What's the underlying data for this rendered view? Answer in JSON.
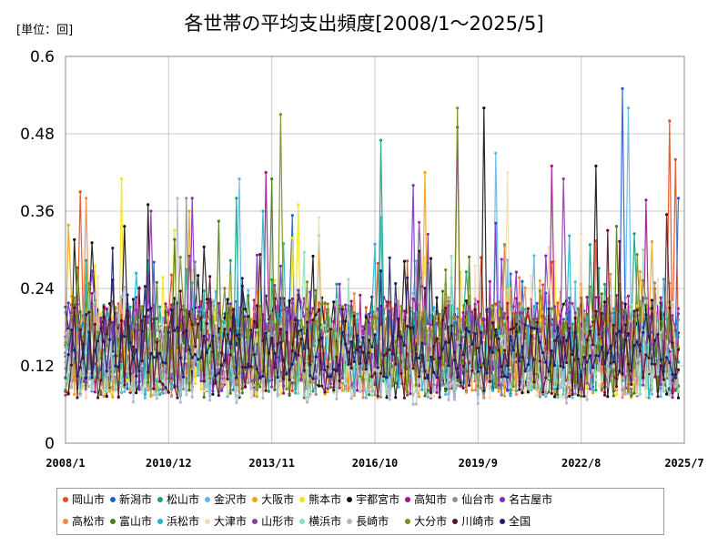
{
  "chart_data": {
    "type": "line",
    "title": "各世帯の平均支出頻度[2008/1～2025/5]",
    "unit_label": "[単位：回]",
    "ylim": [
      0,
      0.6
    ],
    "y_ticks": [
      {
        "value": 0,
        "label": "0"
      },
      {
        "value": 0.12,
        "label": "0.12"
      },
      {
        "value": 0.24,
        "label": "0.24"
      },
      {
        "value": 0.36,
        "label": "0.36"
      },
      {
        "value": 0.48,
        "label": "0.48"
      },
      {
        "value": 0.6,
        "label": "0.6"
      }
    ],
    "x_range": [
      "2008/1",
      "2025/7"
    ],
    "x_ticks": [
      "2008/1",
      "2010/12",
      "2013/11",
      "2016/10",
      "2019/9",
      "2022/8",
      "2025/7"
    ],
    "grid": true,
    "legend_position": "bottom",
    "series": [
      {
        "name": "岡山市",
        "color": "#e8491d",
        "base": 0.15,
        "amp": 0.07,
        "peaks": [
          {
            "x": 2008.45,
            "y": 0.39
          },
          {
            "x": 2025.05,
            "y": 0.5
          },
          {
            "x": 2025.25,
            "y": 0.44
          }
        ]
      },
      {
        "name": "新潟市",
        "color": "#1f5fd6",
        "base": 0.15,
        "amp": 0.07,
        "peaks": [
          {
            "x": 2023.75,
            "y": 0.55
          },
          {
            "x": 2025.3,
            "y": 0.38
          }
        ]
      },
      {
        "name": "松山市",
        "color": "#12a37a",
        "base": 0.15,
        "amp": 0.07,
        "peaks": [
          {
            "x": 2016.95,
            "y": 0.47
          },
          {
            "x": 2012.85,
            "y": 0.38
          }
        ]
      },
      {
        "name": "金沢市",
        "color": "#5bb8e8",
        "base": 0.14,
        "amp": 0.07,
        "peaks": [
          {
            "x": 2023.95,
            "y": 0.52
          },
          {
            "x": 2020.15,
            "y": 0.45
          },
          {
            "x": 2012.9,
            "y": 0.41
          }
        ]
      },
      {
        "name": "大阪市",
        "color": "#f2a20c",
        "base": 0.14,
        "amp": 0.07,
        "peaks": [
          {
            "x": 2018.2,
            "y": 0.42
          },
          {
            "x": 2011.5,
            "y": 0.36
          }
        ]
      },
      {
        "name": "熊本市",
        "color": "#f5e21b",
        "base": 0.14,
        "amp": 0.07,
        "peaks": [
          {
            "x": 2009.6,
            "y": 0.41
          },
          {
            "x": 2014.6,
            "y": 0.37
          }
        ]
      },
      {
        "name": "宇都宮市",
        "color": "#111111",
        "base": 0.15,
        "amp": 0.08,
        "peaks": [
          {
            "x": 2019.85,
            "y": 0.52
          },
          {
            "x": 2023.0,
            "y": 0.43
          },
          {
            "x": 2010.3,
            "y": 0.37
          }
        ]
      },
      {
        "name": "高知市",
        "color": "#a5118f",
        "base": 0.15,
        "amp": 0.08,
        "peaks": [
          {
            "x": 2019.1,
            "y": 0.49
          },
          {
            "x": 2021.75,
            "y": 0.43
          },
          {
            "x": 2013.65,
            "y": 0.42
          }
        ]
      },
      {
        "name": "仙台市",
        "color": "#8a9098",
        "base": 0.13,
        "amp": 0.06,
        "peaks": [
          {
            "x": 2011.45,
            "y": 0.38
          }
        ]
      },
      {
        "name": "名古屋市",
        "color": "#7a2bc4",
        "base": 0.15,
        "amp": 0.07,
        "peaks": [
          {
            "x": 2011.6,
            "y": 0.38
          },
          {
            "x": 2017.8,
            "y": 0.4
          }
        ]
      },
      {
        "name": "高松市",
        "color": "#ee8a45",
        "base": 0.14,
        "amp": 0.07,
        "peaks": [
          {
            "x": 2008.6,
            "y": 0.38
          }
        ]
      },
      {
        "name": "富山市",
        "color": "#4f7a12",
        "base": 0.14,
        "amp": 0.07,
        "peaks": [
          {
            "x": 2013.85,
            "y": 0.41
          }
        ]
      },
      {
        "name": "浜松市",
        "color": "#22b5c9",
        "base": 0.14,
        "amp": 0.07,
        "peaks": [
          {
            "x": 2013.55,
            "y": 0.36
          },
          {
            "x": 2016.9,
            "y": 0.35
          }
        ]
      },
      {
        "name": "大津市",
        "color": "#f2ddb4",
        "base": 0.13,
        "amp": 0.06,
        "peaks": [
          {
            "x": 2015.2,
            "y": 0.35
          },
          {
            "x": 2020.5,
            "y": 0.42
          }
        ]
      },
      {
        "name": "山形市",
        "color": "#8e3a9e",
        "base": 0.15,
        "amp": 0.07,
        "peaks": [
          {
            "x": 2022.1,
            "y": 0.41
          },
          {
            "x": 2010.4,
            "y": 0.36
          }
        ]
      },
      {
        "name": "横浜市",
        "color": "#8ee0b5",
        "base": 0.13,
        "amp": 0.06,
        "peaks": [
          {
            "x": 2024.3,
            "y": 0.3
          }
        ]
      },
      {
        "name": "長崎市",
        "color": "#b4b4d0",
        "base": 0.12,
        "amp": 0.06,
        "peaks": [
          {
            "x": 2011.2,
            "y": 0.38
          }
        ]
      },
      {
        "name": "大分市",
        "color": "#7d8b1c",
        "base": 0.15,
        "amp": 0.07,
        "peaks": [
          {
            "x": 2014.05,
            "y": 0.51
          },
          {
            "x": 2019.05,
            "y": 0.52
          }
        ]
      },
      {
        "name": "川崎市",
        "color": "#5a0f24",
        "base": 0.14,
        "amp": 0.07,
        "peaks": [
          {
            "x": 2023.3,
            "y": 0.33
          }
        ]
      },
      {
        "name": "全国",
        "color": "#18216b",
        "base": 0.14,
        "amp": 0.04,
        "peaks": []
      }
    ]
  }
}
